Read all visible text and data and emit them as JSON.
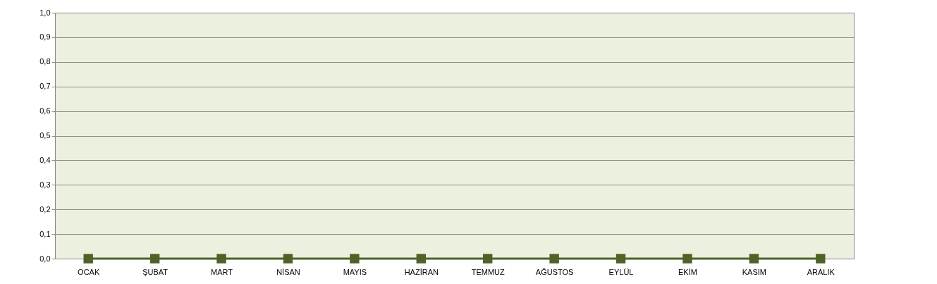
{
  "chart_data": {
    "type": "line",
    "categories": [
      "OCAK",
      "ŞUBAT",
      "MART",
      "NİSAN",
      "MAYIS",
      "HAZİRAN",
      "TEMMUZ",
      "AĞUSTOS",
      "EYLÜL",
      "EKİM",
      "KASIM",
      "ARALIK"
    ],
    "series": [
      {
        "color": "#4f6228",
        "values": [
          0,
          0,
          0,
          0,
          0,
          0,
          0,
          0,
          0,
          0,
          0,
          0
        ]
      }
    ],
    "ylim": [
      0,
      1
    ],
    "yticks": [
      {
        "value": 0,
        "label": "0,0"
      },
      {
        "value": 0.1,
        "label": "0,1"
      },
      {
        "value": 0.2,
        "label": "0,2"
      },
      {
        "value": 0.3,
        "label": "0,3"
      },
      {
        "value": 0.4,
        "label": "0,4"
      },
      {
        "value": 0.5,
        "label": "0,5"
      },
      {
        "value": 0.6,
        "label": "0,6"
      },
      {
        "value": 0.7,
        "label": "0,7"
      },
      {
        "value": 0.8,
        "label": "0,8"
      },
      {
        "value": 0.9,
        "label": "0,9"
      },
      {
        "value": 1,
        "label": "1,0"
      }
    ],
    "grid": "y",
    "marker": "square",
    "line_style": "solid",
    "legend": false
  }
}
